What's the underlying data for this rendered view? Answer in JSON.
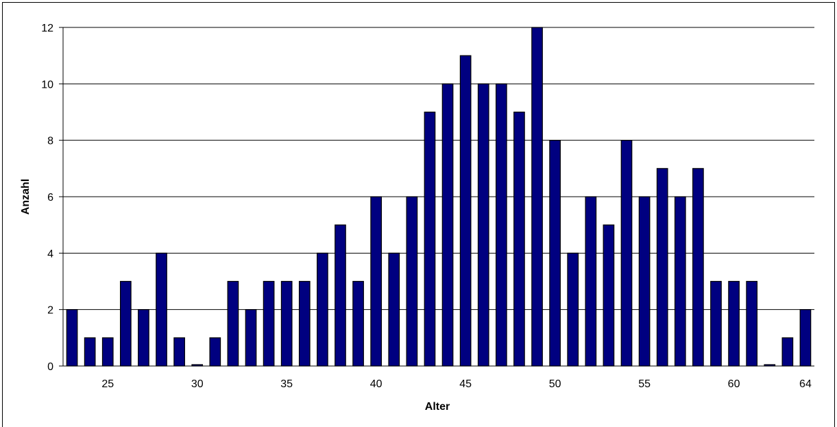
{
  "chart_data": {
    "type": "bar",
    "title": "",
    "xlabel": "Alter",
    "ylabel": "Anzahl",
    "ylim": [
      0,
      12
    ],
    "y_ticks": [
      0,
      2,
      4,
      6,
      8,
      10,
      12
    ],
    "x_tick_labels": [
      25,
      30,
      35,
      40,
      45,
      50,
      55,
      60,
      64
    ],
    "grid": "horizontal",
    "bar_color": "#000080",
    "categories": [
      23,
      24,
      25,
      26,
      27,
      28,
      29,
      30,
      31,
      32,
      33,
      34,
      35,
      36,
      37,
      38,
      39,
      40,
      41,
      42,
      43,
      44,
      45,
      46,
      47,
      48,
      49,
      50,
      51,
      52,
      53,
      54,
      55,
      56,
      57,
      58,
      59,
      60,
      61,
      62,
      63,
      64
    ],
    "values": [
      2,
      1,
      1,
      3,
      2,
      4,
      1,
      0,
      1,
      3,
      2,
      3,
      3,
      3,
      4,
      5,
      3,
      6,
      4,
      6,
      9,
      10,
      11,
      10,
      10,
      9,
      12,
      8,
      4,
      6,
      5,
      8,
      6,
      7,
      6,
      7,
      3,
      3,
      3,
      0,
      1,
      2
    ]
  }
}
